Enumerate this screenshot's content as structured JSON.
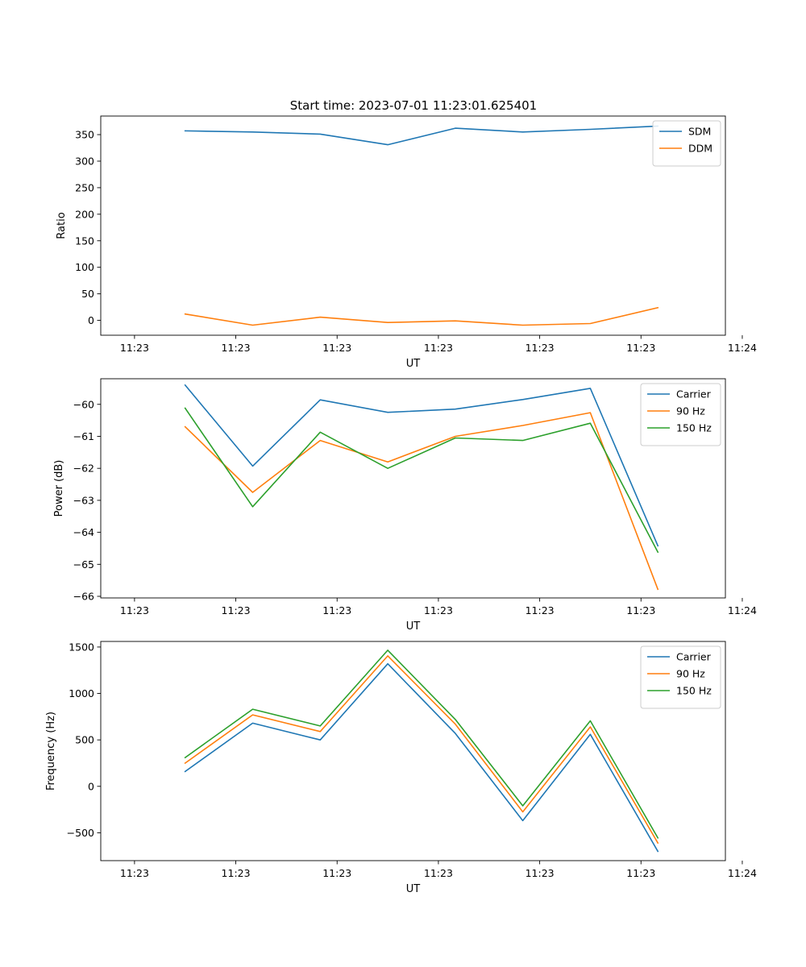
{
  "figure": {
    "title": "Start time: 2023-07-01 11:23:01.625401"
  },
  "chart_data": [
    {
      "type": "line",
      "title": "Start time: 2023-07-01 11:23:01.625401",
      "xlabel": "UT",
      "ylabel": "Ratio",
      "xlim": [
        -0.5,
        8.75
      ],
      "ylim": [
        -28,
        385
      ],
      "x_ticks": [
        0,
        1.5,
        3,
        4.5,
        6,
        7.5,
        9
      ],
      "x_tick_labels": [
        "11:23",
        "11:23",
        "11:23",
        "11:23",
        "11:23",
        "11:23",
        "11:24"
      ],
      "y_ticks": [
        0,
        50,
        100,
        150,
        200,
        250,
        300,
        350
      ],
      "y_tick_labels": [
        "0",
        "50",
        "100",
        "150",
        "200",
        "250",
        "300",
        "350"
      ],
      "legend_position": "top-right",
      "x": [
        0.75,
        1.75,
        2.75,
        3.75,
        4.75,
        5.75,
        6.75,
        7.75
      ],
      "series": [
        {
          "name": "SDM",
          "color": "#1f77b4",
          "values": [
            357,
            355,
            351,
            331,
            362,
            355,
            360,
            366
          ]
        },
        {
          "name": "DDM",
          "color": "#ff7f0e",
          "values": [
            12,
            -9,
            6,
            -4,
            -1,
            -9,
            -6,
            24
          ]
        }
      ]
    },
    {
      "type": "line",
      "title": "",
      "xlabel": "UT",
      "ylabel": "Power (dB)",
      "xlim": [
        -0.5,
        8.75
      ],
      "ylim": [
        -66.05,
        -59.2
      ],
      "x_ticks": [
        0,
        1.5,
        3,
        4.5,
        6,
        7.5,
        9
      ],
      "x_tick_labels": [
        "11:23",
        "11:23",
        "11:23",
        "11:23",
        "11:23",
        "11:23",
        "11:24"
      ],
      "y_ticks": [
        -66,
        -65,
        -64,
        -63,
        -62,
        -61,
        -60
      ],
      "y_tick_labels": [
        "−66",
        "−65",
        "−64",
        "−63",
        "−62",
        "−61",
        "−60"
      ],
      "legend_position": "top-right",
      "x": [
        0.75,
        1.75,
        2.75,
        3.75,
        4.75,
        5.75,
        6.75,
        7.75
      ],
      "series": [
        {
          "name": "Carrier",
          "color": "#1f77b4",
          "values": [
            -59.4,
            -61.93,
            -59.86,
            -60.25,
            -60.15,
            -59.85,
            -59.5,
            -64.42
          ]
        },
        {
          "name": "90 Hz",
          "color": "#ff7f0e",
          "values": [
            -60.7,
            -62.75,
            -61.13,
            -61.8,
            -61.0,
            -60.66,
            -60.26,
            -65.78
          ]
        },
        {
          "name": "150 Hz",
          "color": "#2ca02c",
          "values": [
            -60.12,
            -63.2,
            -60.87,
            -62.0,
            -61.05,
            -61.13,
            -60.59,
            -64.62
          ]
        }
      ]
    },
    {
      "type": "line",
      "title": "",
      "xlabel": "UT",
      "ylabel": "Frequency (Hz)",
      "xlim": [
        -0.5,
        8.75
      ],
      "ylim": [
        -800,
        1560
      ],
      "x_ticks": [
        0,
        1.5,
        3,
        4.5,
        6,
        7.5,
        9
      ],
      "x_tick_labels": [
        "11:23",
        "11:23",
        "11:23",
        "11:23",
        "11:23",
        "11:23",
        "11:24"
      ],
      "y_ticks": [
        -500,
        0,
        500,
        1000,
        1500
      ],
      "y_tick_labels": [
        "−500",
        "0",
        "500",
        "1000",
        "1500"
      ],
      "legend_position": "top-right",
      "x": [
        0.75,
        1.75,
        2.75,
        3.75,
        4.75,
        5.75,
        6.75,
        7.75
      ],
      "series": [
        {
          "name": "Carrier",
          "color": "#1f77b4",
          "values": [
            160,
            680,
            500,
            1320,
            570,
            -370,
            560,
            -700
          ]
        },
        {
          "name": "90 Hz",
          "color": "#ff7f0e",
          "values": [
            250,
            770,
            590,
            1405,
            670,
            -275,
            640,
            -610
          ]
        },
        {
          "name": "150 Hz",
          "color": "#2ca02c",
          "values": [
            310,
            830,
            650,
            1465,
            720,
            -210,
            705,
            -555
          ]
        }
      ]
    }
  ]
}
